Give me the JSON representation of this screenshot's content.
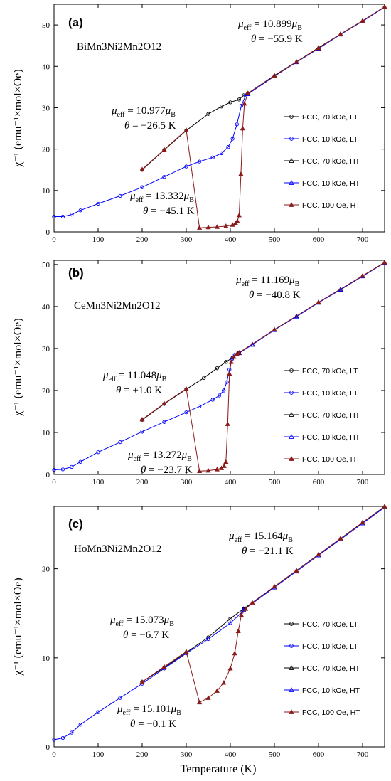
{
  "figure": {
    "xlabel": "Temperature (K)",
    "ylabel": "χ⁻¹ (emu⁻¹×mol×Oe)"
  },
  "legend_entries": [
    {
      "label": "FCC, 70 kOe, LT",
      "color": "#000000",
      "marker": "circle-open"
    },
    {
      "label": "FCC, 10 kOe, LT",
      "color": "#0000ff",
      "marker": "circle-open"
    },
    {
      "label": "FCC, 70 kOe, HT",
      "color": "#000000",
      "marker": "triangle-open"
    },
    {
      "label": "FCC, 10 kOe, HT",
      "color": "#0000ff",
      "marker": "triangle-open"
    },
    {
      "label": "FCC, 100 Oe, HT",
      "color": "#8b1a1a",
      "marker": "triangle-filled"
    }
  ],
  "chart_data": [
    {
      "type": "scatter",
      "panel": "(a)",
      "compound": "BiMn3Ni2Mn2O12",
      "xlim": [
        0,
        750
      ],
      "ylim": [
        0,
        55
      ],
      "xticks": [
        0,
        100,
        200,
        300,
        400,
        500,
        600,
        700
      ],
      "yticks": [
        0,
        10,
        20,
        30,
        40,
        50
      ],
      "annotations": [
        {
          "mu": "10.899",
          "theta": "−55.9 K"
        },
        {
          "mu": "10.977",
          "theta": "−26.5 K"
        },
        {
          "mu": "13.332",
          "theta": "−45.1 K"
        }
      ],
      "series": [
        {
          "name": "FCC, 70 kOe, LT",
          "x": [
            200,
            250,
            300,
            350,
            380,
            400,
            420,
            430,
            440
          ],
          "y": [
            15,
            19.8,
            24.5,
            28.5,
            30.3,
            31.3,
            32,
            33,
            33.5
          ]
        },
        {
          "name": "FCC, 10 kOe, LT",
          "x": [
            0,
            20,
            40,
            60,
            100,
            150,
            200,
            250,
            300,
            330,
            360,
            380,
            395,
            405,
            415,
            425,
            435
          ],
          "y": [
            3.7,
            3.7,
            4.2,
            5.2,
            6.8,
            8.7,
            10.8,
            13.3,
            15.8,
            17,
            18,
            19,
            20.5,
            22.5,
            26,
            30.5,
            33
          ]
        },
        {
          "name": "FCC, 70 kOe, HT",
          "x": [
            440,
            500,
            550,
            600,
            650,
            700,
            750
          ],
          "y": [
            33.5,
            37.8,
            41.1,
            44.5,
            47.8,
            51,
            54.4
          ]
        },
        {
          "name": "FCC, 10 kOe, HT",
          "x": [
            440,
            500,
            550,
            600,
            650,
            700,
            750
          ],
          "y": [
            33.3,
            37.6,
            41,
            44.3,
            47.7,
            50.9,
            54.3
          ]
        },
        {
          "name": "FCC, 100 Oe, HT",
          "x": [
            200,
            250,
            300,
            330,
            350,
            370,
            390,
            405,
            412,
            416,
            420,
            424,
            428,
            432,
            440,
            500,
            550,
            600,
            650,
            700,
            750
          ],
          "y": [
            15.1,
            19.9,
            24.6,
            1,
            1.1,
            1.2,
            1.4,
            1.7,
            2.1,
            2.6,
            4,
            14,
            25,
            31,
            33.5,
            37.7,
            41.1,
            44.4,
            47.8,
            51,
            54.4
          ]
        }
      ]
    },
    {
      "type": "scatter",
      "panel": "(b)",
      "compound": "CeMn3Ni2Mn2O12",
      "xlim": [
        0,
        750
      ],
      "ylim": [
        0,
        51
      ],
      "xticks": [
        0,
        100,
        200,
        300,
        400,
        500,
        600,
        700
      ],
      "yticks": [
        0,
        10,
        20,
        30,
        40,
        50
      ],
      "annotations": [
        {
          "mu": "11.169",
          "theta": "−40.8 K"
        },
        {
          "mu": "11.048",
          "theta": "+1.0 K"
        },
        {
          "mu": "13.272",
          "theta": "−23.7 K"
        }
      ],
      "series": [
        {
          "name": "FCC, 70 kOe, LT",
          "x": [
            200,
            250,
            300,
            340,
            370,
            390,
            405,
            420
          ],
          "y": [
            13,
            16.8,
            20.3,
            23,
            25.3,
            26.8,
            27.8,
            29
          ]
        },
        {
          "name": "FCC, 10 kOe, LT",
          "x": [
            0,
            20,
            40,
            60,
            100,
            150,
            200,
            250,
            300,
            330,
            360,
            375,
            385,
            392,
            398,
            404,
            410,
            418
          ],
          "y": [
            1.1,
            1.2,
            1.8,
            3,
            5.3,
            7.7,
            10.2,
            12.5,
            14.8,
            16.2,
            17.8,
            18.8,
            20,
            22,
            25,
            27.5,
            28.5,
            29
          ]
        },
        {
          "name": "FCC, 70 kOe, HT",
          "x": [
            420,
            450,
            500,
            550,
            600,
            650,
            700,
            750
          ],
          "y": [
            29,
            31,
            34.5,
            37.7,
            41,
            44.1,
            47.3,
            50.5
          ]
        },
        {
          "name": "FCC, 10 kOe, HT",
          "x": [
            420,
            450,
            500,
            550,
            600,
            650,
            700,
            750
          ],
          "y": [
            28.9,
            30.9,
            34.4,
            37.6,
            40.9,
            44,
            47.2,
            50.4
          ]
        },
        {
          "name": "FCC, 100 Oe, HT",
          "x": [
            200,
            250,
            300,
            330,
            350,
            370,
            380,
            386,
            390,
            394,
            398,
            402,
            408,
            415,
            420,
            500,
            600,
            700,
            750
          ],
          "y": [
            13.1,
            16.9,
            20.4,
            0.8,
            0.9,
            1.2,
            1.5,
            2,
            3,
            12,
            24,
            26.8,
            28,
            28.7,
            29,
            34.5,
            41,
            47.3,
            50.5
          ]
        }
      ]
    },
    {
      "type": "scatter",
      "panel": "(c)",
      "compound": "HoMn3Ni2Mn2O12",
      "xlim": [
        0,
        750
      ],
      "ylim": [
        0,
        27
      ],
      "xticks": [
        0,
        100,
        200,
        300,
        400,
        500,
        600,
        700
      ],
      "yticks": [
        0,
        10,
        20
      ],
      "annotations": [
        {
          "mu": "15.164",
          "theta": "−21.1 K"
        },
        {
          "mu": "15.073",
          "theta": "−6.7 K"
        },
        {
          "mu": "15.101",
          "theta": "−0.1 K"
        }
      ],
      "series": [
        {
          "name": "FCC, 70 kOe, LT",
          "x": [
            200,
            250,
            300,
            350,
            400,
            430
          ],
          "y": [
            7.3,
            8.9,
            10.6,
            12.3,
            14.4,
            15.5
          ]
        },
        {
          "name": "FCC, 10 kOe, LT",
          "x": [
            0,
            20,
            40,
            60,
            100,
            150,
            200,
            250,
            300,
            350,
            400,
            430
          ],
          "y": [
            0.8,
            1,
            1.6,
            2.5,
            3.9,
            5.5,
            7.1,
            8.8,
            10.5,
            12.1,
            13.9,
            15.3
          ]
        },
        {
          "name": "FCC, 70 kOe, HT",
          "x": [
            430,
            500,
            550,
            600,
            650,
            700,
            750
          ],
          "y": [
            15.5,
            18,
            19.8,
            21.6,
            23.4,
            25.2,
            27
          ]
        },
        {
          "name": "FCC, 10 kOe, HT",
          "x": [
            430,
            500,
            550,
            600,
            650,
            700,
            750
          ],
          "y": [
            15.4,
            17.9,
            19.7,
            21.5,
            23.3,
            25.1,
            26.9
          ]
        },
        {
          "name": "FCC, 100 Oe, HT",
          "x": [
            200,
            250,
            300,
            330,
            350,
            370,
            385,
            400,
            410,
            418,
            425,
            435,
            450,
            500,
            550,
            600,
            650,
            700,
            750
          ],
          "y": [
            7.3,
            9,
            10.7,
            5,
            5.5,
            6.3,
            7.2,
            8.8,
            10.5,
            13,
            14.8,
            15.5,
            16.2,
            18,
            19.8,
            21.6,
            23.4,
            25.2,
            27
          ]
        }
      ]
    }
  ]
}
